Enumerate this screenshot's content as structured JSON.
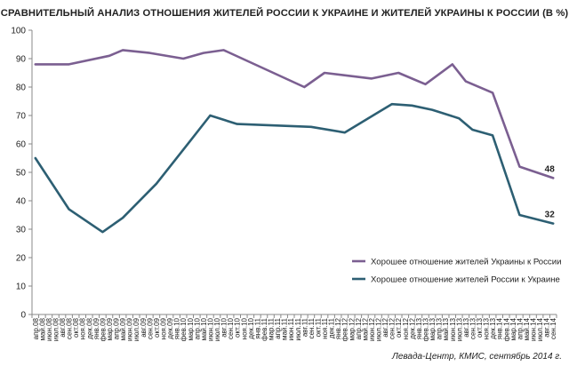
{
  "chart_data": {
    "type": "line",
    "title": "СРАВНИТЕЛЬНЫЙ АНАЛИЗ ОТНОШЕНИЯ ЖИТЕЛЕЙ РОССИИ К УКРАИНЕ И ЖИТЕЛЕЙ УКРАИНЫ К РОССИИ (В %)",
    "source": "Левада-Центр, КМИС, сентябрь 2014 г.",
    "xlabel": "",
    "ylabel": "",
    "ylim": [
      0,
      100
    ],
    "yticks": [
      0,
      10,
      20,
      30,
      40,
      50,
      60,
      70,
      80,
      90,
      100
    ],
    "grid": false,
    "legend_position": "lower-right",
    "categories": [
      "апр.08",
      "май.08",
      "июн.08",
      "июл.08",
      "авг.08",
      "сен.08",
      "окт.08",
      "ноя.08",
      "дек.08",
      "янв.09",
      "фев.09",
      "мар.09",
      "апр.09",
      "май.09",
      "июн.09",
      "июл.09",
      "авг.09",
      "сен.09",
      "окт.09",
      "ноя.09",
      "дек.09",
      "янв.10",
      "фев.10",
      "мар.10",
      "апр.10",
      "май.10",
      "июн.10",
      "июл.10",
      "авг.10",
      "сен.10",
      "окт.10",
      "ноя.10",
      "дек.10",
      "янв.11",
      "фев.11",
      "мар.11",
      "апр.11",
      "май.11",
      "июн.11",
      "июл.11",
      "авг.11",
      "сен.11",
      "окт.11",
      "ноя.11",
      "дек.11",
      "янв.12",
      "фев.12",
      "мар.12",
      "апр.12",
      "май.12",
      "июн.12",
      "июл.12",
      "авг.12",
      "сен.12",
      "окт.12",
      "ноя.12",
      "дек.12",
      "янв.13",
      "фев.13",
      "мар.13",
      "апр.13",
      "май.13",
      "июн.13",
      "июл.13",
      "авг.13",
      "сен.13",
      "окт.13",
      "ноя.13",
      "дек.13",
      "янв.14",
      "фев.14",
      "мар.14",
      "апр.14",
      "май.14",
      "июн.14",
      "июл.14",
      "авг.14",
      "сен.14"
    ],
    "series": [
      {
        "name": "Хорошее отношение жителей Украины к России",
        "color": "#7b5f91",
        "points": [
          [
            0,
            88
          ],
          [
            5,
            88
          ],
          [
            11,
            91
          ],
          [
            13,
            93
          ],
          [
            17,
            92
          ],
          [
            22,
            90
          ],
          [
            25,
            92
          ],
          [
            28,
            93
          ],
          [
            40,
            80
          ],
          [
            43,
            85
          ],
          [
            50,
            83
          ],
          [
            54,
            85
          ],
          [
            58,
            81
          ],
          [
            62,
            88
          ],
          [
            64,
            82
          ],
          [
            68,
            78
          ],
          [
            72,
            52
          ],
          [
            77,
            48
          ]
        ],
        "end_label": "48"
      },
      {
        "name": "Хорошее отношение жителей России к Украине",
        "color": "#2d5f73",
        "points": [
          [
            0,
            55
          ],
          [
            5,
            37
          ],
          [
            10,
            29
          ],
          [
            13,
            34
          ],
          [
            18,
            46
          ],
          [
            23,
            61
          ],
          [
            26,
            70
          ],
          [
            30,
            67
          ],
          [
            41,
            66
          ],
          [
            46,
            64
          ],
          [
            53,
            74
          ],
          [
            56,
            73.5
          ],
          [
            59,
            72
          ],
          [
            63,
            69
          ],
          [
            65,
            65
          ],
          [
            68,
            63
          ],
          [
            72,
            35
          ],
          [
            77,
            32
          ]
        ],
        "end_label": "32"
      }
    ]
  }
}
